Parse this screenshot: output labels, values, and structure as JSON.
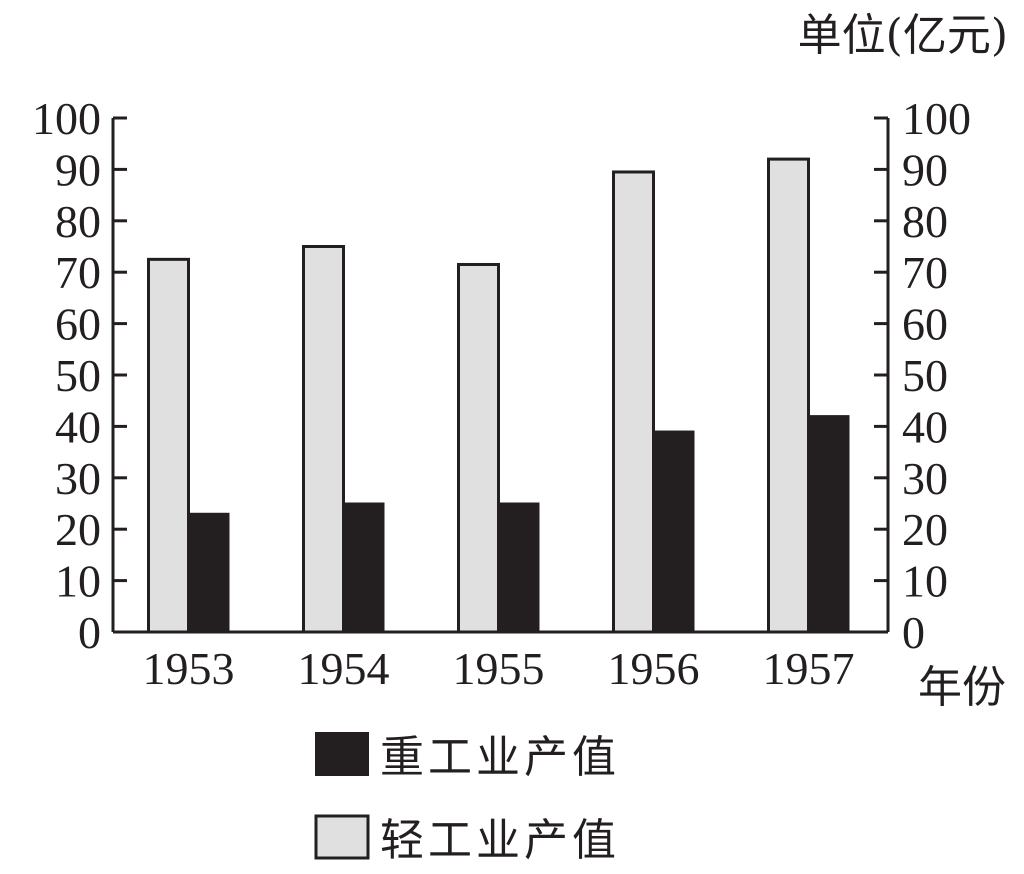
{
  "chart_data": {
    "type": "bar",
    "title": "",
    "unit_label": "单位(亿元)",
    "xlabel": "年份",
    "ylabel": "",
    "categories": [
      "1953",
      "1954",
      "1955",
      "1956",
      "1957"
    ],
    "series": [
      {
        "name": "轻工业产值",
        "values": [
          72.5,
          75,
          71.5,
          89.5,
          92
        ],
        "color": "#e0e0e0"
      },
      {
        "name": "重工业产值",
        "values": [
          23,
          25,
          25,
          39,
          42
        ],
        "color": "#231f20"
      }
    ],
    "ylim": [
      0,
      100
    ],
    "yticks": [
      0,
      10,
      20,
      30,
      40,
      50,
      60,
      70,
      80,
      90,
      100
    ],
    "dual_y_axis": true,
    "grid": false,
    "legend_position": "bottom"
  }
}
